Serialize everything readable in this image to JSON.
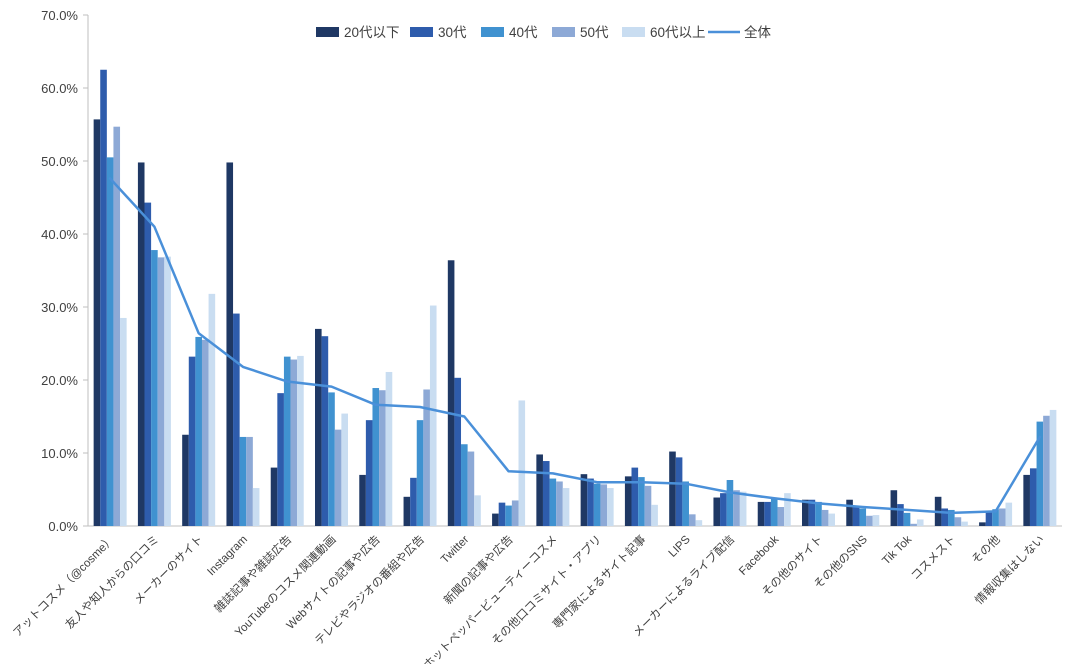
{
  "chart_data": {
    "type": "bar",
    "title": "",
    "xlabel": "",
    "ylabel": "",
    "ylim": [
      0,
      70
    ],
    "y_tick_step": 10,
    "y_ticks": [
      "0.0%",
      "10.0%",
      "20.0%",
      "30.0%",
      "40.0%",
      "50.0%",
      "60.0%",
      "70.0%"
    ],
    "grid": false,
    "legend_position": "top",
    "axis_color": "#bfbfbf",
    "label_color": "#404040",
    "categories": [
      "アットコスメ（@cosme）",
      "友人や知人からの口コミ",
      "メーカーのサイト",
      "Instagram",
      "雑誌記事や雑誌広告",
      "YouTubeのコスメ関連動画",
      "Webサイトの記事や広告",
      "テレビやラジオの番組や広告",
      "Twitter",
      "新聞の記事や広告",
      "ホットペッパービューティーコスメ",
      "その他口コミサイト・アプリ",
      "専門家によるサイト記事",
      "LIPS",
      "メーカーによるライブ配信",
      "Facebook",
      "その他のサイト",
      "その他のSNS",
      "Tik Tok",
      "コスメスト",
      "その他",
      "情報収集はしない"
    ],
    "series": [
      {
        "name": "20代以下",
        "type": "bar",
        "color": "#1f3864",
        "values": [
          55.7,
          49.8,
          12.5,
          49.8,
          8.0,
          27.0,
          7.0,
          4.0,
          36.4,
          1.7,
          9.8,
          7.1,
          6.8,
          10.2,
          3.9,
          3.3,
          3.6,
          3.6,
          4.9,
          4.0,
          0.5,
          7.0
        ]
      },
      {
        "name": "30代",
        "type": "bar",
        "color": "#2e5cac",
        "values": [
          62.5,
          44.3,
          23.2,
          29.1,
          18.2,
          26.0,
          14.5,
          6.6,
          20.3,
          3.2,
          8.9,
          6.5,
          8.0,
          9.4,
          4.5,
          3.3,
          3.6,
          2.6,
          3.0,
          2.4,
          1.9,
          7.9
        ]
      },
      {
        "name": "40代",
        "type": "bar",
        "color": "#4092d0",
        "values": [
          50.5,
          37.8,
          25.9,
          12.2,
          23.2,
          18.3,
          18.9,
          14.5,
          11.2,
          2.8,
          6.5,
          5.8,
          6.7,
          6.1,
          6.3,
          3.9,
          3.3,
          2.4,
          1.8,
          2.2,
          2.3,
          14.3
        ]
      },
      {
        "name": "50代",
        "type": "bar",
        "color": "#8da9d6",
        "values": [
          54.7,
          36.8,
          25.5,
          12.2,
          22.8,
          13.2,
          18.6,
          18.7,
          10.2,
          3.5,
          6.1,
          5.7,
          5.5,
          1.6,
          4.9,
          2.6,
          2.2,
          1.4,
          0.3,
          1.2,
          2.4,
          15.1
        ]
      },
      {
        "name": "60代以上",
        "type": "bar",
        "color": "#c9ddf1",
        "values": [
          28.5,
          36.9,
          31.8,
          5.2,
          23.3,
          15.4,
          21.1,
          30.2,
          4.2,
          17.2,
          5.2,
          5.2,
          2.9,
          0.8,
          4.7,
          4.5,
          1.7,
          1.5,
          0.9,
          0.6,
          3.2,
          15.9
        ]
      },
      {
        "name": "全体",
        "type": "line",
        "color": "#4a90d9",
        "values": [
          47.6,
          41.0,
          26.4,
          21.8,
          19.8,
          19.1,
          16.6,
          16.3,
          15.0,
          7.5,
          7.2,
          6.0,
          6.0,
          5.8,
          4.6,
          3.8,
          3.1,
          2.6,
          2.2,
          1.8,
          2.0,
          12.2
        ]
      }
    ]
  }
}
